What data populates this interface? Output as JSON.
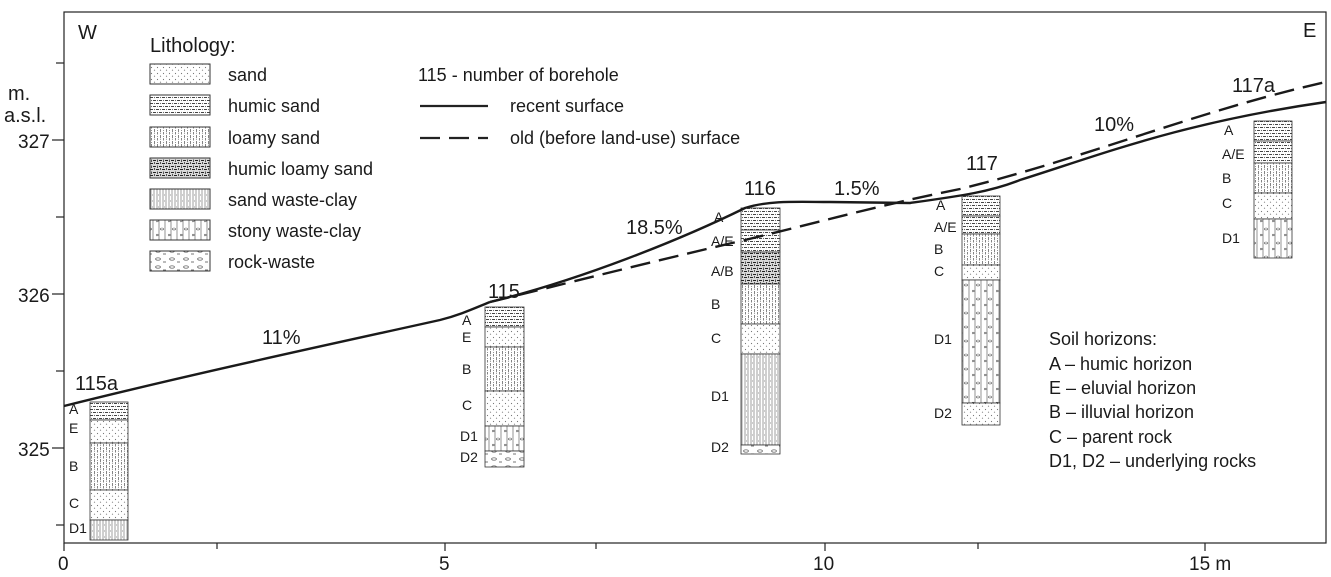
{
  "corners": {
    "west": "W",
    "east": "E"
  },
  "y_axis": {
    "unit_line1": "m.",
    "unit_line2": "a.s.l.",
    "ticks": [
      "327",
      "326",
      "325"
    ]
  },
  "x_axis": {
    "ticks": [
      "0",
      "5",
      "10",
      "15 m"
    ]
  },
  "lithology": {
    "title": "Lithology:",
    "items": [
      "sand",
      "humic sand",
      "loamy sand",
      "humic loamy sand",
      "sand waste-clay",
      "stony waste-clay",
      "rock-waste"
    ]
  },
  "key": {
    "borehole_note": "115 - number of borehole",
    "recent_surface": "recent surface",
    "old_surface": "old (before land-use) surface"
  },
  "slopes": [
    "11%",
    "18.5%",
    "1.5%",
    "10%"
  ],
  "boreholes": [
    {
      "name": "115a",
      "horizons": [
        "A",
        "E",
        "B",
        "C",
        "D1"
      ]
    },
    {
      "name": "115",
      "horizons": [
        "A",
        "E",
        "B",
        "C",
        "D1",
        "D2"
      ]
    },
    {
      "name": "116",
      "horizons": [
        "A",
        "A/E",
        "A/B",
        "B",
        "C",
        "D1",
        "D2"
      ]
    },
    {
      "name": "117",
      "horizons": [
        "A",
        "A/E",
        "B",
        "C",
        "D1",
        "D2"
      ]
    },
    {
      "name": "117a",
      "horizons": [
        "A",
        "A/E",
        "B",
        "C",
        "D1"
      ]
    }
  ],
  "soil_horizons": {
    "title": "Soil horizons:",
    "items": [
      "A – humic horizon",
      "E – eluvial horizon",
      "B – illuvial horizon",
      "C – parent rock",
      "D1, D2 – underlying rocks"
    ]
  }
}
